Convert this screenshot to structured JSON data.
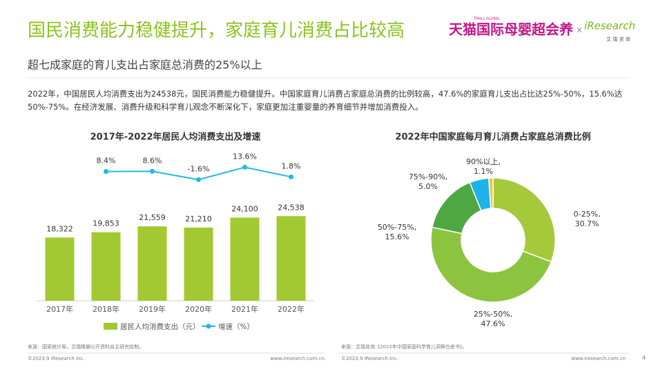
{
  "header": {
    "title": "国民消费能力稳健提升，家庭育儿消费占比较高",
    "subtitle": "超七成家庭的育儿支出占家庭总消费的25%以上",
    "body": "2022年，中国居民人均消费支出为24538元，国民消费能力稳健提升。中国家庭育儿消费占家庭总消费的比例较高，47.6%的家庭育儿支出占比达25%-50%，15.6%达50%-75%。在经济发展、消费升级和科学育儿观念不断深化下，家庭更加注重婴童的养育细节并增加消费投入。",
    "logo_small": "TMALL GLOBAL",
    "logo": "天猫国际母婴超会养",
    "times": "×",
    "partner": "iResearch",
    "partner_cn": "艾 瑞 咨 询"
  },
  "chart_data": [
    {
      "type": "bar",
      "title": "2017年-2022年居民人均消费支出及增速",
      "categories": [
        "2017年",
        "2018年",
        "2019年",
        "2020年",
        "2021年",
        "2022年"
      ],
      "ylim": [
        0,
        44000
      ],
      "y2lim": [
        -150,
        36
      ],
      "series": [
        {
          "name": "居民人均消费支出（元）",
          "color": "#a2c931",
          "values": [
            18322,
            19853,
            21559,
            21210,
            24100,
            24538
          ],
          "value_labels": [
            "18,322",
            "19,853",
            "21,559",
            "21,210",
            "24,100",
            "24,538"
          ]
        },
        {
          "name": "增速（%）",
          "color": "#1fb8e8",
          "axis": "y2",
          "values": [
            null,
            8.4,
            8.6,
            -1.6,
            13.6,
            1.8
          ],
          "value_labels": [
            null,
            "8.4%",
            "8.6%",
            "-1.6%",
            "13.6%",
            "1.8%"
          ]
        }
      ]
    },
    {
      "type": "pie",
      "title": "2022年中国家庭每月育儿消费占家庭总消费比例",
      "categories": [
        "0-25%,",
        "25%-50%,",
        "50%-75%,",
        "75%-90%,",
        "90%以上,"
      ],
      "values": [
        30.7,
        47.6,
        15.6,
        5.0,
        1.1
      ],
      "value_labels": [
        "30.7%",
        "47.6%",
        "15.6%",
        "5.0%",
        "1.1%"
      ],
      "colors": [
        "#a5c93a",
        "#8cc43f",
        "#4fa744",
        "#1db3e8",
        "#f4c13f"
      ],
      "donut": true
    }
  ],
  "footer": {
    "left": {
      "source": "来源：国家统计局，艾瑞根据公开资料自主研究绘制。",
      "copyright": "©2023.9 iResearch Inc.",
      "url": "www.iresearch.com.cn"
    },
    "right": {
      "source": "来源：艾瑞咨询《2022年中国家庭科学育儿洞察白皮书》。",
      "copyright": "©2023.9 iResearch Inc.",
      "url": "www.iresearch.com.cn"
    },
    "page": "4"
  }
}
